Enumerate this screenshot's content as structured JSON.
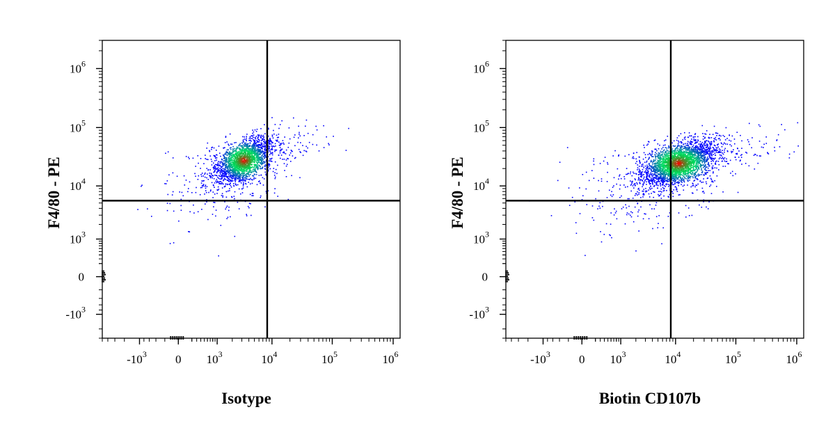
{
  "chart_data": [
    {
      "type": "scatter",
      "xlabel": "Isotype",
      "ylabel": "F4/80 - PE",
      "x_scale": "biexponential",
      "y_scale": "biexponential",
      "xlim": [
        -5000,
        1300000
      ],
      "ylim": [
        -3000,
        3000000
      ],
      "x_ticks": [
        {
          "value": -1000,
          "base": "-10",
          "exp": "3"
        },
        {
          "value": 0,
          "base": "0",
          "exp": ""
        },
        {
          "value": 1000,
          "base": "10",
          "exp": "3"
        },
        {
          "value": 10000,
          "base": "10",
          "exp": "4"
        },
        {
          "value": 100000,
          "base": "10",
          "exp": "5"
        },
        {
          "value": 1000000,
          "base": "10",
          "exp": "6"
        }
      ],
      "y_ticks": [
        {
          "value": -1000,
          "base": "-10",
          "exp": "3"
        },
        {
          "value": 0,
          "base": "0",
          "exp": ""
        },
        {
          "value": 1000,
          "base": "10",
          "exp": "3"
        },
        {
          "value": 10000,
          "base": "10",
          "exp": "4"
        },
        {
          "value": 100000,
          "base": "10",
          "exp": "5"
        },
        {
          "value": 1000000,
          "base": "10",
          "exp": "6"
        }
      ],
      "gate": {
        "x": 8300,
        "y": 5500
      },
      "population": {
        "center_x": 3200,
        "center_y": 28000
      },
      "colors": {
        "low": "#0000ff",
        "mid": "#00dd66",
        "high": "#ff0000",
        "gate": "#000000"
      }
    },
    {
      "type": "scatter",
      "xlabel": "Biotin CD107b",
      "ylabel": "F4/80 - PE",
      "x_scale": "biexponential",
      "y_scale": "biexponential",
      "xlim": [
        -5000,
        1300000
      ],
      "ylim": [
        -3000,
        3000000
      ],
      "x_ticks": [
        {
          "value": -1000,
          "base": "-10",
          "exp": "3"
        },
        {
          "value": 0,
          "base": "0",
          "exp": ""
        },
        {
          "value": 1000,
          "base": "10",
          "exp": "3"
        },
        {
          "value": 10000,
          "base": "10",
          "exp": "4"
        },
        {
          "value": 100000,
          "base": "10",
          "exp": "5"
        },
        {
          "value": 1000000,
          "base": "10",
          "exp": "6"
        }
      ],
      "y_ticks": [
        {
          "value": -1000,
          "base": "-10",
          "exp": "3"
        },
        {
          "value": 0,
          "base": "0",
          "exp": ""
        },
        {
          "value": 1000,
          "base": "10",
          "exp": "3"
        },
        {
          "value": 10000,
          "base": "10",
          "exp": "4"
        },
        {
          "value": 100000,
          "base": "10",
          "exp": "5"
        },
        {
          "value": 1000000,
          "base": "10",
          "exp": "6"
        }
      ],
      "gate": {
        "x": 8300,
        "y": 5500
      },
      "population": {
        "center_x": 11000,
        "center_y": 25000
      },
      "colors": {
        "low": "#0000ff",
        "mid": "#00dd66",
        "high": "#ff0000",
        "gate": "#000000"
      }
    }
  ]
}
